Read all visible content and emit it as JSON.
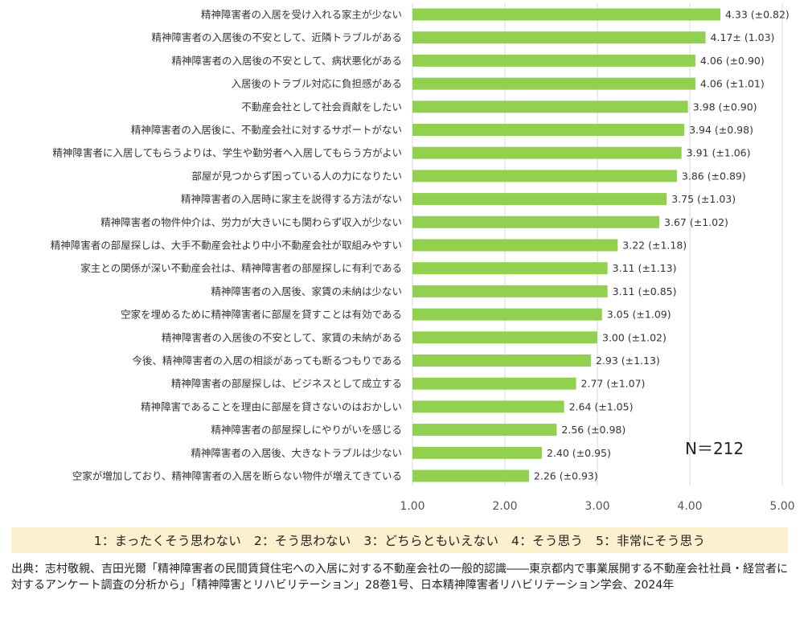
{
  "chart_data": {
    "type": "bar",
    "orientation": "horizontal",
    "categories": [
      "精神障害者の入居を受け入れる家主が少ない",
      "精神障害者の入居後の不安として、近隣トラブルがある",
      "精神障害者の入居後の不安として、病状悪化がある",
      "入居後のトラブル対応に負担感がある",
      "不動産会社として社会貢献をしたい",
      "精神障害者の入居後に、不動産会社に対するサポートがない",
      "精神障害者に入居してもらうよりは、学生や勤労者へ入居してもらう方がよい",
      "部屋が見つからず困っている人の力になりたい",
      "精神障害者の入居時に家主を説得する方法がない",
      "精神障害者の物件仲介は、労力が大きいにも関わらず収入が少ない",
      "精神障害者の部屋探しは、大手不動産会社より中小不動産会社が取組みやすい",
      "家主との関係が深い不動産会社は、精神障害者の部屋探しに有利である",
      "精神障害者の入居後、家賃の未納は少ない",
      "空家を埋めるために精神障害者に部屋を貸すことは有効である",
      "精神障害者の入居後の不安として、家賃の未納がある",
      "今後、精神障害者の入居の相談があっても断るつもりである",
      "精神障害者の部屋探しは、ビジネスとして成立する",
      "精神障害であることを理由に部屋を貸さないのはおかしい",
      "精神障害者の部屋探しにやりがいを感じる",
      "精神障害者の入居後、大きなトラブルは少ない",
      "空家が増加しており、精神障害者の入居を断らない物件が増えてきている"
    ],
    "values": [
      4.33,
      4.17,
      4.06,
      4.06,
      3.98,
      3.94,
      3.91,
      3.86,
      3.75,
      3.67,
      3.22,
      3.11,
      3.11,
      3.05,
      3.0,
      2.93,
      2.77,
      2.64,
      2.56,
      2.4,
      2.26
    ],
    "value_labels": [
      "4.33 (±0.82)",
      "4.17± (1.03)",
      "4.06 (±0.90)",
      "4.06 (±1.01)",
      "3.98 (±0.90)",
      "3.94 (±0.98)",
      "3.91 (±1.06)",
      "3.86 (±0.89)",
      "3.75 (±1.03)",
      "3.67 (±1.02)",
      "3.22 (±1.18)",
      "3.11 (±1.13)",
      "3.11 (±0.85)",
      "3.05 (±1.09)",
      "3.00 (±1.02)",
      "2.93 (±1.13)",
      "2.77 (±1.07)",
      "2.64 (±1.05)",
      "2.56 (±0.98)",
      "2.40 (±0.95)",
      "2.26 (±0.93)"
    ],
    "xlim": [
      1.0,
      5.0
    ],
    "x_ticks": [
      "1.00",
      "2.00",
      "3.00",
      "4.00",
      "5.00"
    ],
    "grid": "vertical",
    "bar_color": "#92d050",
    "annotation": "N＝212",
    "title": "",
    "xlabel": "",
    "ylabel": ""
  },
  "legend_text": "1：まったくそう思わない　2：そう思わない　3：どちらともいえない　4：そう思う　5：非常にそう思う",
  "source_text": "出典：志村敬親、吉田光爾「精神障害者の民間賃貸住宅への入居に対する不動産会社の一般的認識――東京都内で事業展開する不動産会社社員・経営者に対するアンケート調査の分析から」「精神障害とリハビリテーション」28巻1号、日本精神障害者リハビリテーション学会、2024年",
  "colors": {
    "bar": "#92d050",
    "legend_bg": "#fdf0cf",
    "grid": "#d9d9d9"
  }
}
